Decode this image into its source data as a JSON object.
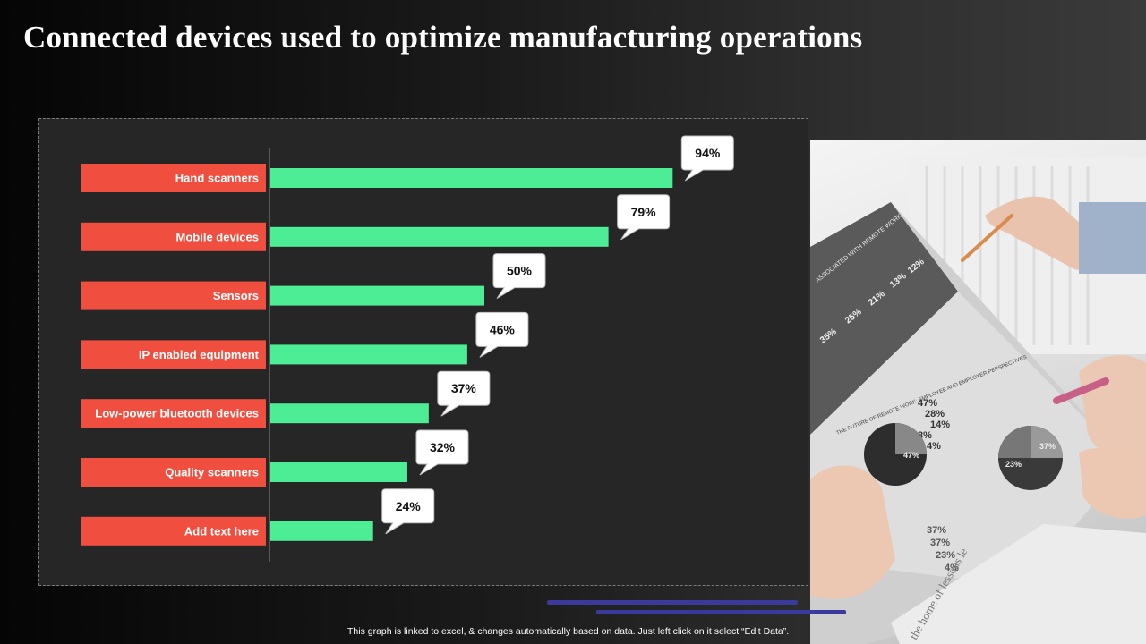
{
  "title": "Connected devices used to optimize manufacturing operations",
  "footer_note": "This graph is linked to excel, & changes automatically based on data. Just left click on it select “Edit Data”.",
  "colors": {
    "label_box": "#f04e3e",
    "bar": "#4ded95",
    "callout_bg": "#ffffff",
    "accent_line": "#3a3a9c"
  },
  "chart_data": {
    "type": "bar",
    "orientation": "horizontal",
    "title": "",
    "xlabel": "",
    "ylabel": "",
    "xlim": [
      0,
      100
    ],
    "categories": [
      "Hand scanners",
      "Mobile devices",
      "Sensors",
      "IP enabled equipment",
      "Low-power bluetooth devices",
      "Quality scanners",
      "Add text here"
    ],
    "values": [
      94,
      79,
      50,
      46,
      37,
      32,
      24
    ],
    "value_labels": [
      "94%",
      "79%",
      "50%",
      "46%",
      "37%",
      "32%",
      "24%"
    ]
  },
  "photo": {
    "doc_heading": "THE FUTURE OF REMOTE WORK: EMPLOYEE AND EMPLOYER PERSPECTIVES",
    "doc_stats": [
      "47%",
      "28%",
      "14%",
      "8%",
      "4%"
    ],
    "doc_pie_labels": [
      "47%",
      "37%",
      "23%"
    ],
    "doc_bottom_stats": [
      "37%",
      "37%",
      "23%",
      "4%"
    ],
    "doc_top_stats": [
      "35%",
      "25%",
      "21%",
      "13%",
      "12%"
    ],
    "book_text": "the home of lessons le"
  }
}
